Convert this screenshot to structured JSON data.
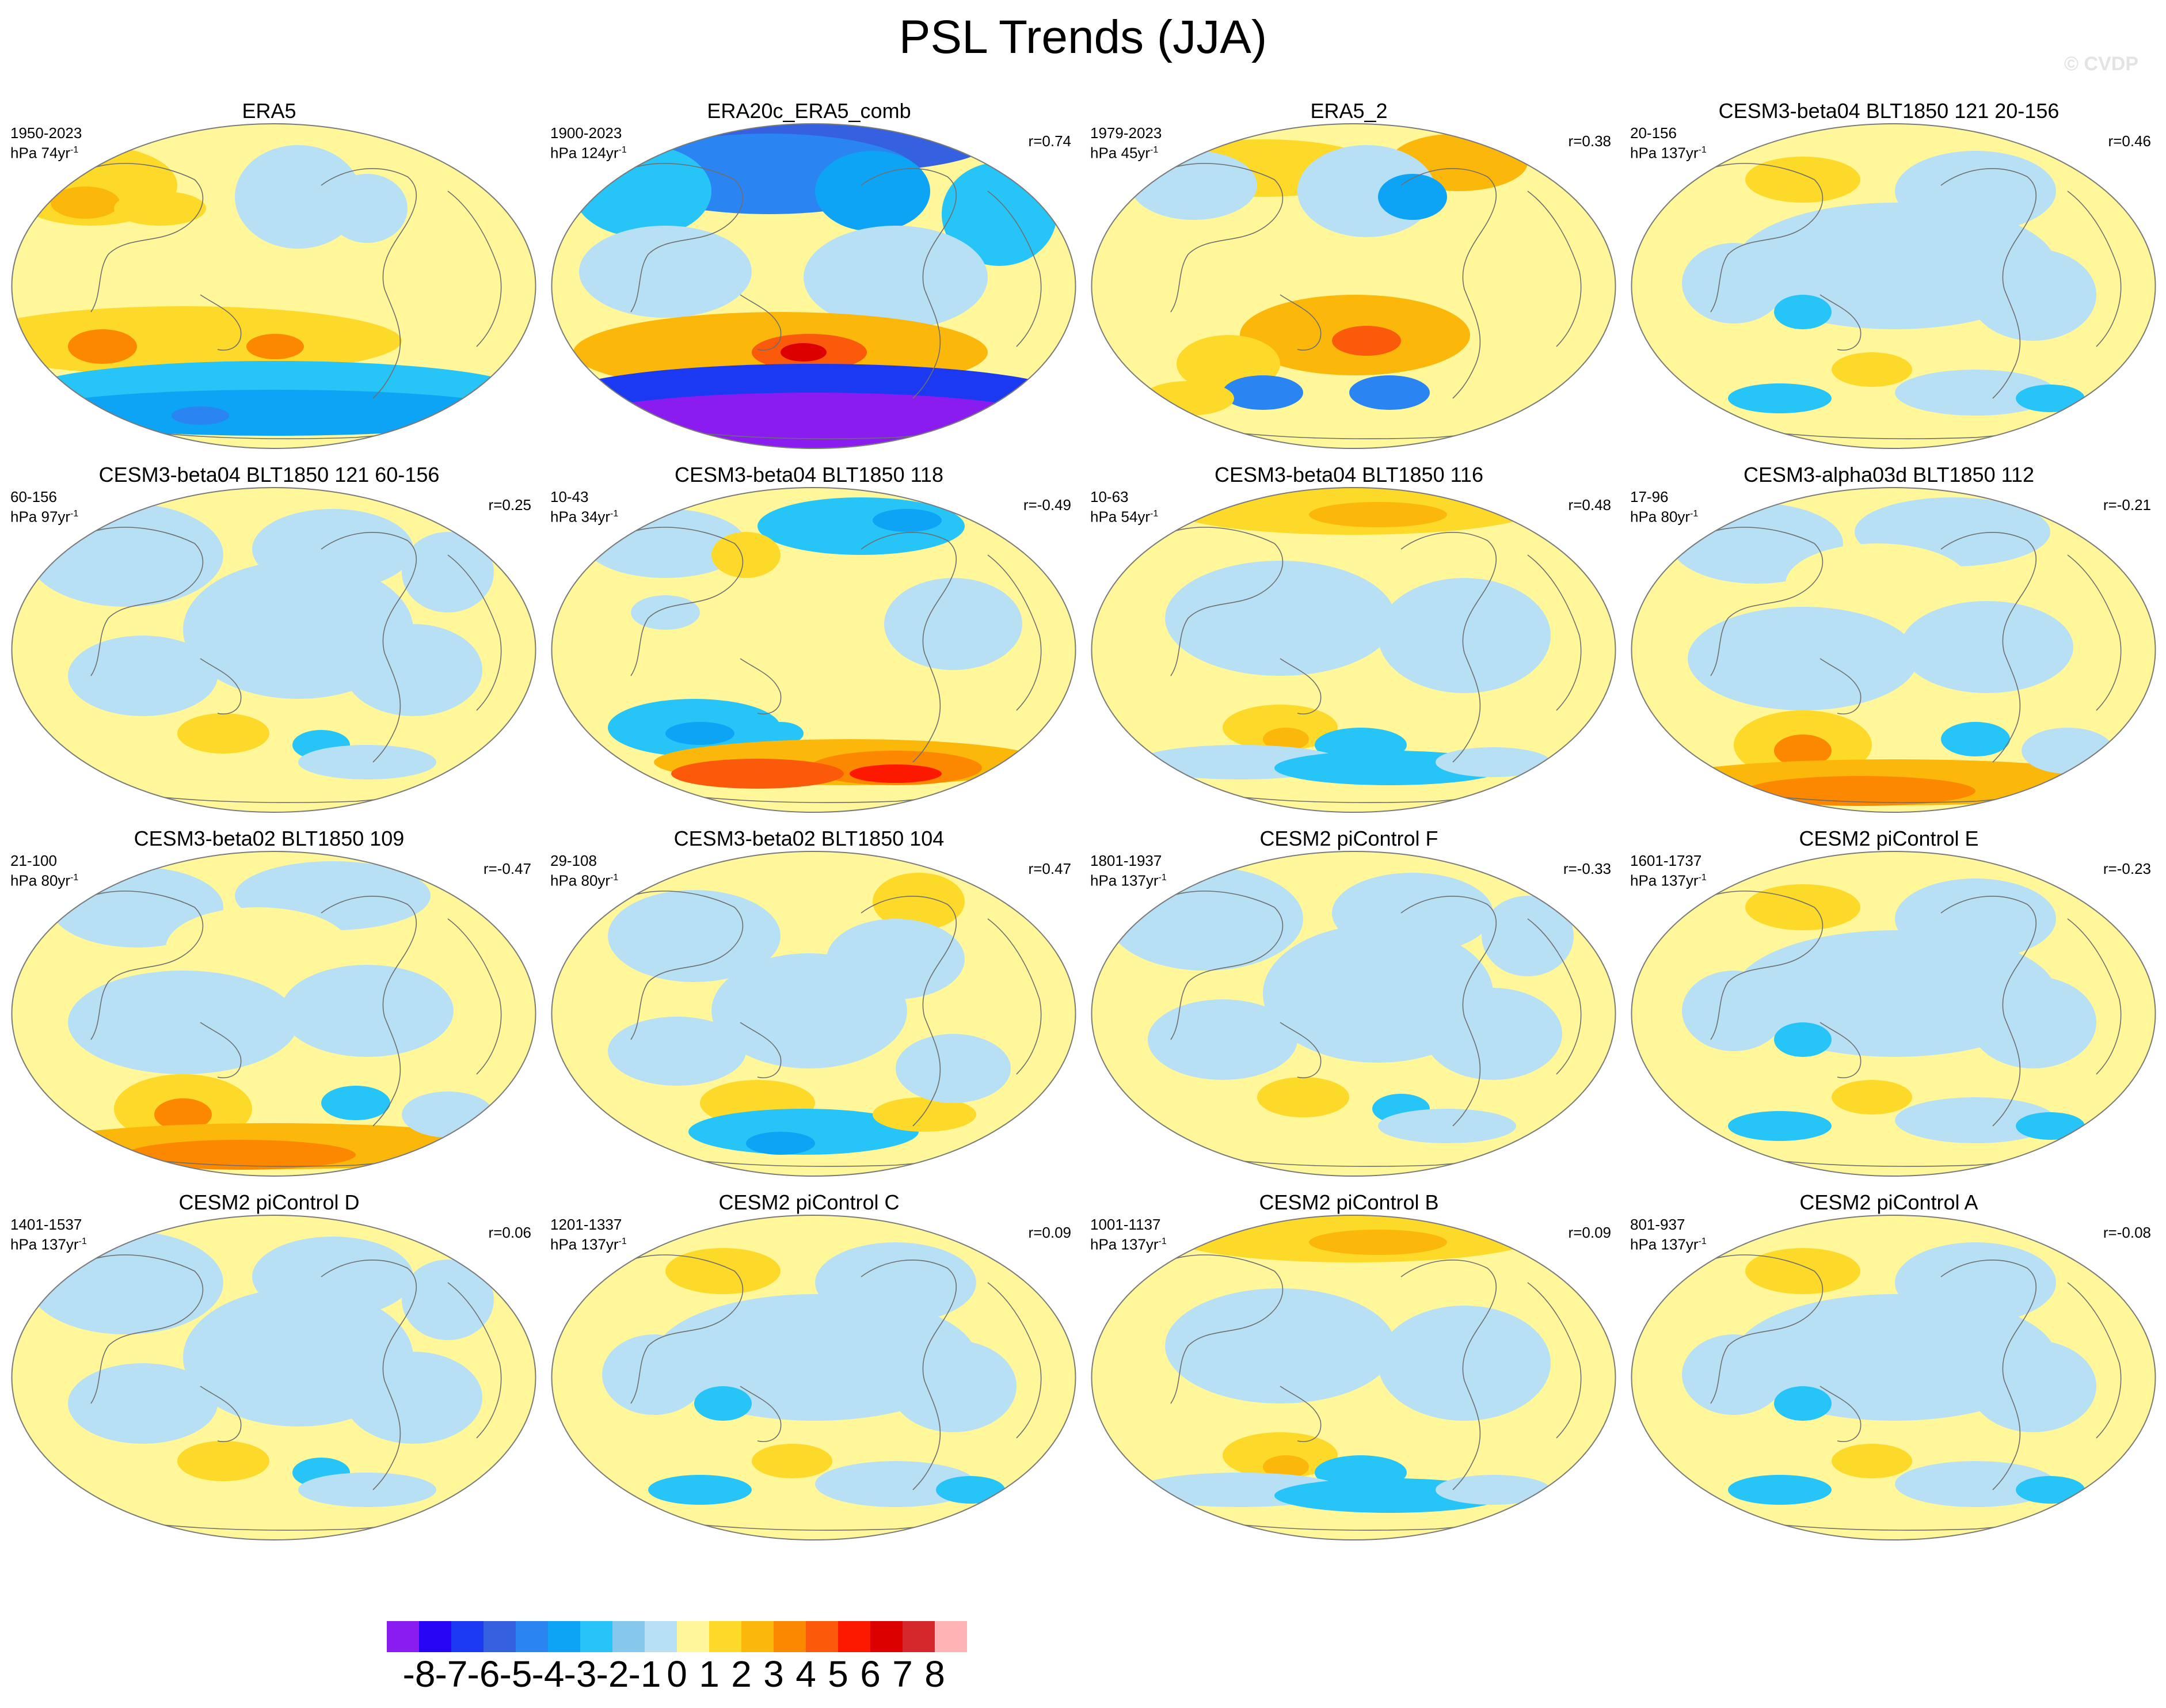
{
  "title": "PSL Trends (JJA)",
  "watermark": "© CVDP",
  "panels": [
    {
      "title": "ERA5",
      "years": "1950-2023",
      "units": "hPa 74yr",
      "units_exp": "-1",
      "r": "",
      "pattern": "era5"
    },
    {
      "title": "ERA20c_ERA5_comb",
      "years": "1900-2023",
      "units": "hPa 124yr",
      "units_exp": "-1",
      "r": "r=0.74",
      "pattern": "era20c"
    },
    {
      "title": "ERA5_2",
      "years": "1979-2023",
      "units": "hPa 45yr",
      "units_exp": "-1",
      "r": "r=0.38",
      "pattern": "era5_2"
    },
    {
      "title": "CESM3-beta04 BLT1850 121 20-156",
      "years": "20-156",
      "units": "hPa 137yr",
      "units_exp": "-1",
      "r": "r=0.46",
      "pattern": "weak_mixed"
    },
    {
      "title": "CESM3-beta04 BLT1850 121 60-156",
      "years": "60-156",
      "units": "hPa 97yr",
      "units_exp": "-1",
      "r": "r=0.25",
      "pattern": "weak_blue"
    },
    {
      "title": "CESM3-beta04 BLT1850 118",
      "years": "10-43",
      "units": "hPa 34yr",
      "units_exp": "-1",
      "r": "r=-0.49",
      "pattern": "south_red"
    },
    {
      "title": "CESM3-beta04 BLT1850 116",
      "years": "10-63",
      "units": "hPa 54yr",
      "units_exp": "-1",
      "r": "r=0.48",
      "pattern": "north_orange"
    },
    {
      "title": "CESM3-alpha03d BLT1850 112",
      "years": "17-96",
      "units": "hPa 80yr",
      "units_exp": "-1",
      "r": "r=-0.21",
      "pattern": "south_orange"
    },
    {
      "title": "CESM3-beta02 BLT1850 109",
      "years": "21-100",
      "units": "hPa 80yr",
      "units_exp": "-1",
      "r": "r=-0.47",
      "pattern": "south_orange"
    },
    {
      "title": "CESM3-beta02 BLT1850 104",
      "years": "29-108",
      "units": "hPa 80yr",
      "units_exp": "-1",
      "r": "r=0.47",
      "pattern": "south_blue"
    },
    {
      "title": "CESM2 piControl F",
      "years": "1801-1937",
      "units": "hPa 137yr",
      "units_exp": "-1",
      "r": "r=-0.33",
      "pattern": "weak_blue"
    },
    {
      "title": "CESM2 piControl E",
      "years": "1601-1737",
      "units": "hPa 137yr",
      "units_exp": "-1",
      "r": "r=-0.23",
      "pattern": "weak_mixed"
    },
    {
      "title": "CESM2 piControl D",
      "years": "1401-1537",
      "units": "hPa 137yr",
      "units_exp": "-1",
      "r": "r=0.06",
      "pattern": "weak_blue"
    },
    {
      "title": "CESM2 piControl C",
      "years": "1201-1337",
      "units": "hPa 137yr",
      "units_exp": "-1",
      "r": "r=0.09",
      "pattern": "weak_mixed"
    },
    {
      "title": "CESM2 piControl B",
      "years": "1001-1137",
      "units": "hPa 137yr",
      "units_exp": "-1",
      "r": "r=0.09",
      "pattern": "north_orange"
    },
    {
      "title": "CESM2 piControl A",
      "years": "801-937",
      "units": "hPa 137yr",
      "units_exp": "-1",
      "r": "r=-0.08",
      "pattern": "weak_mixed"
    }
  ],
  "colorbar": {
    "labels": [
      "-8",
      "-7",
      "-6",
      "-5",
      "-4",
      "-3",
      "-2",
      "-1",
      "0",
      "1",
      "2",
      "3",
      "4",
      "5",
      "6",
      "7",
      "8"
    ],
    "colors": [
      "#8a1cf0",
      "#2605f5",
      "#1a39f0",
      "#3560e0",
      "#2a84f2",
      "#0ea4f5",
      "#27c4f8",
      "#86c7ee",
      "#b8e0f5",
      "#fff799",
      "#fdd92a",
      "#fcb70b",
      "#fc8800",
      "#fb5a0a",
      "#fd1800",
      "#dc0000",
      "#d4282d",
      "#ffb3b3"
    ]
  },
  "palette": {
    "land_outline": "#6e6e6e",
    "map_outline": "#7a7a7a",
    "neutral_positive": "#fff799",
    "neutral_negative": "#b8e0f5"
  }
}
